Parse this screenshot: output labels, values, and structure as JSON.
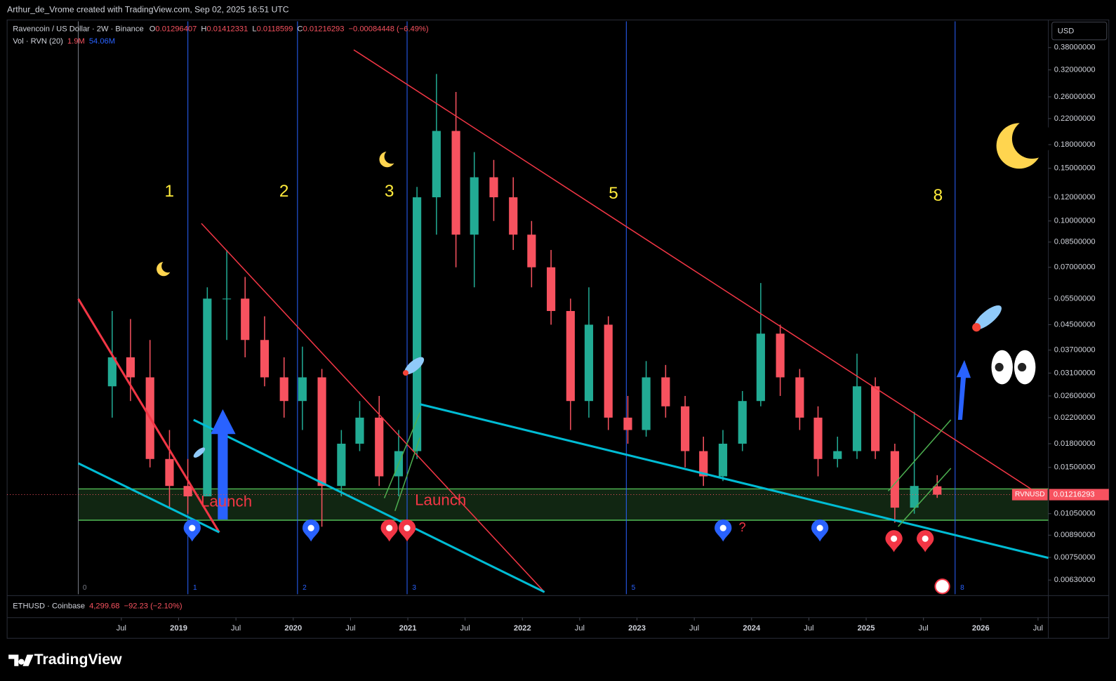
{
  "attribution": "Arthur_de_Vrome created with TradingView.com, Sep 02, 2025 16:51 UTC",
  "brand": "TradingView",
  "currency": "USD",
  "volume_legend": {
    "name": "Vol · RVN (20)",
    "v1": "1.9M",
    "v2": "54.06M"
  },
  "second_pane": {
    "symbol": "ETHUSD · Coinbase",
    "price": "4,299.68",
    "change": "−92.23 (−2.10%)"
  },
  "annotations": {
    "cycles": [
      "0",
      "1",
      "2",
      "3",
      "5",
      "8"
    ],
    "launch": "Launch",
    "question": "?",
    "price_tag": "RVNUSD"
  },
  "chart_data": {
    "type": "candlestick",
    "title": "Ravencoin / US Dollar · 2W · Binance",
    "change": "−0.00084448 (−6.49%)",
    "ohlc_letters": [
      "O",
      "H",
      "L",
      "C"
    ],
    "log_scale": true,
    "grid": false,
    "up_color": "#22ab94",
    "down_color": "#f7525f",
    "x": [
      2018.42,
      2018.58,
      2018.75,
      2018.92,
      2019.08,
      2019.25,
      2019.42,
      2019.58,
      2019.75,
      2019.92,
      2020.08,
      2020.25,
      2020.42,
      2020.58,
      2020.75,
      2020.92,
      2021.08,
      2021.25,
      2021.42,
      2021.58,
      2021.75,
      2021.92,
      2022.08,
      2022.25,
      2022.42,
      2022.58,
      2022.75,
      2022.92,
      2023.08,
      2023.25,
      2023.42,
      2023.58,
      2023.75,
      2023.92,
      2024.08,
      2024.25,
      2024.42,
      2024.58,
      2024.75,
      2024.92,
      2025.08,
      2025.25,
      2025.42,
      2025.62
    ],
    "open": [
      0.028,
      0.035,
      0.03,
      0.016,
      0.013,
      0.012,
      0.055,
      0.055,
      0.04,
      0.03,
      0.025,
      0.03,
      0.013,
      0.018,
      0.022,
      0.014,
      0.017,
      0.12,
      0.2,
      0.09,
      0.14,
      0.12,
      0.09,
      0.07,
      0.05,
      0.025,
      0.045,
      0.022,
      0.02,
      0.03,
      0.024,
      0.017,
      0.014,
      0.018,
      0.025,
      0.042,
      0.03,
      0.022,
      0.016,
      0.017,
      0.028,
      0.017,
      0.011,
      0.01296407
    ],
    "high": [
      0.05,
      0.047,
      0.04,
      0.02,
      0.016,
      0.06,
      0.08,
      0.065,
      0.048,
      0.035,
      0.038,
      0.032,
      0.02,
      0.025,
      0.026,
      0.02,
      0.13,
      0.31,
      0.27,
      0.17,
      0.16,
      0.14,
      0.1,
      0.08,
      0.055,
      0.06,
      0.048,
      0.026,
      0.034,
      0.033,
      0.026,
      0.019,
      0.02,
      0.027,
      0.062,
      0.045,
      0.032,
      0.024,
      0.019,
      0.036,
      0.03,
      0.018,
      0.023,
      0.01412331
    ],
    "low": [
      0.022,
      0.025,
      0.015,
      0.011,
      0.0105,
      0.012,
      0.04,
      0.035,
      0.028,
      0.022,
      0.02,
      0.0095,
      0.012,
      0.017,
      0.013,
      0.012,
      0.016,
      0.09,
      0.07,
      0.06,
      0.1,
      0.08,
      0.06,
      0.045,
      0.02,
      0.022,
      0.02,
      0.018,
      0.019,
      0.022,
      0.015,
      0.013,
      0.0135,
      0.017,
      0.024,
      0.026,
      0.02,
      0.014,
      0.015,
      0.016,
      0.016,
      0.0098,
      0.0105,
      0.0118599
    ],
    "close": [
      0.035,
      0.03,
      0.016,
      0.013,
      0.012,
      0.055,
      0.055,
      0.04,
      0.03,
      0.025,
      0.03,
      0.013,
      0.018,
      0.022,
      0.014,
      0.017,
      0.12,
      0.2,
      0.09,
      0.14,
      0.12,
      0.09,
      0.07,
      0.05,
      0.025,
      0.045,
      0.022,
      0.02,
      0.03,
      0.024,
      0.017,
      0.014,
      0.018,
      0.025,
      0.042,
      0.03,
      0.022,
      0.016,
      0.017,
      0.028,
      0.017,
      0.011,
      0.013,
      0.01216293
    ],
    "xlim": [
      2017.503,
      2026.59
    ],
    "xticks": [
      {
        "value": 2018.5,
        "label": "Jul"
      },
      2019,
      {
        "value": 2019.5,
        "label": "Jul"
      },
      2020,
      {
        "value": 2020.5,
        "label": "Jul"
      },
      2021,
      {
        "value": 2021.5,
        "label": "Jul"
      },
      2022,
      {
        "value": 2022.5,
        "label": "Jul"
      },
      2023,
      {
        "value": 2023.5,
        "label": "Jul"
      },
      2024,
      {
        "value": 2024.5,
        "label": "Jul"
      },
      2025,
      {
        "value": 2025.5,
        "label": "Jul"
      },
      2026,
      {
        "value": 2026.5,
        "label": "Jul"
      }
    ],
    "ylim": [
      0.00565,
      0.465
    ],
    "yticks": [
      {
        "value": 0.38,
        "label": "0.38000000"
      },
      {
        "value": 0.32,
        "label": "0.32000000"
      },
      {
        "value": 0.26,
        "label": "0.26000000"
      },
      {
        "value": 0.22,
        "label": "0.22000000"
      },
      {
        "value": 0.18,
        "label": "0.18000000"
      },
      {
        "value": 0.15,
        "label": "0.15000000"
      },
      {
        "value": 0.12,
        "label": "0.12000000"
      },
      {
        "value": 0.1,
        "label": "0.10000000"
      },
      {
        "value": 0.085,
        "label": "0.08500000"
      },
      {
        "value": 0.07,
        "label": "0.07000000"
      },
      {
        "value": 0.055,
        "label": "0.05500000"
      },
      {
        "value": 0.045,
        "label": "0.04500000"
      },
      {
        "value": 0.037,
        "label": "0.03700000"
      },
      {
        "value": 0.031,
        "label": "0.03100000"
      },
      {
        "value": 0.026,
        "label": "0.02600000"
      },
      {
        "value": 0.022,
        "label": "0.02200000"
      },
      {
        "value": 0.018,
        "label": "0.01800000"
      },
      {
        "value": 0.015,
        "label": "0.01500000"
      },
      {
        "value": 0.0105,
        "label": "0.01050000"
      },
      {
        "value": 0.0089,
        "label": "0.00890000"
      },
      {
        "value": 0.0075,
        "label": "0.00750000"
      },
      {
        "value": 0.0063,
        "label": "0.00630000"
      }
    ]
  }
}
